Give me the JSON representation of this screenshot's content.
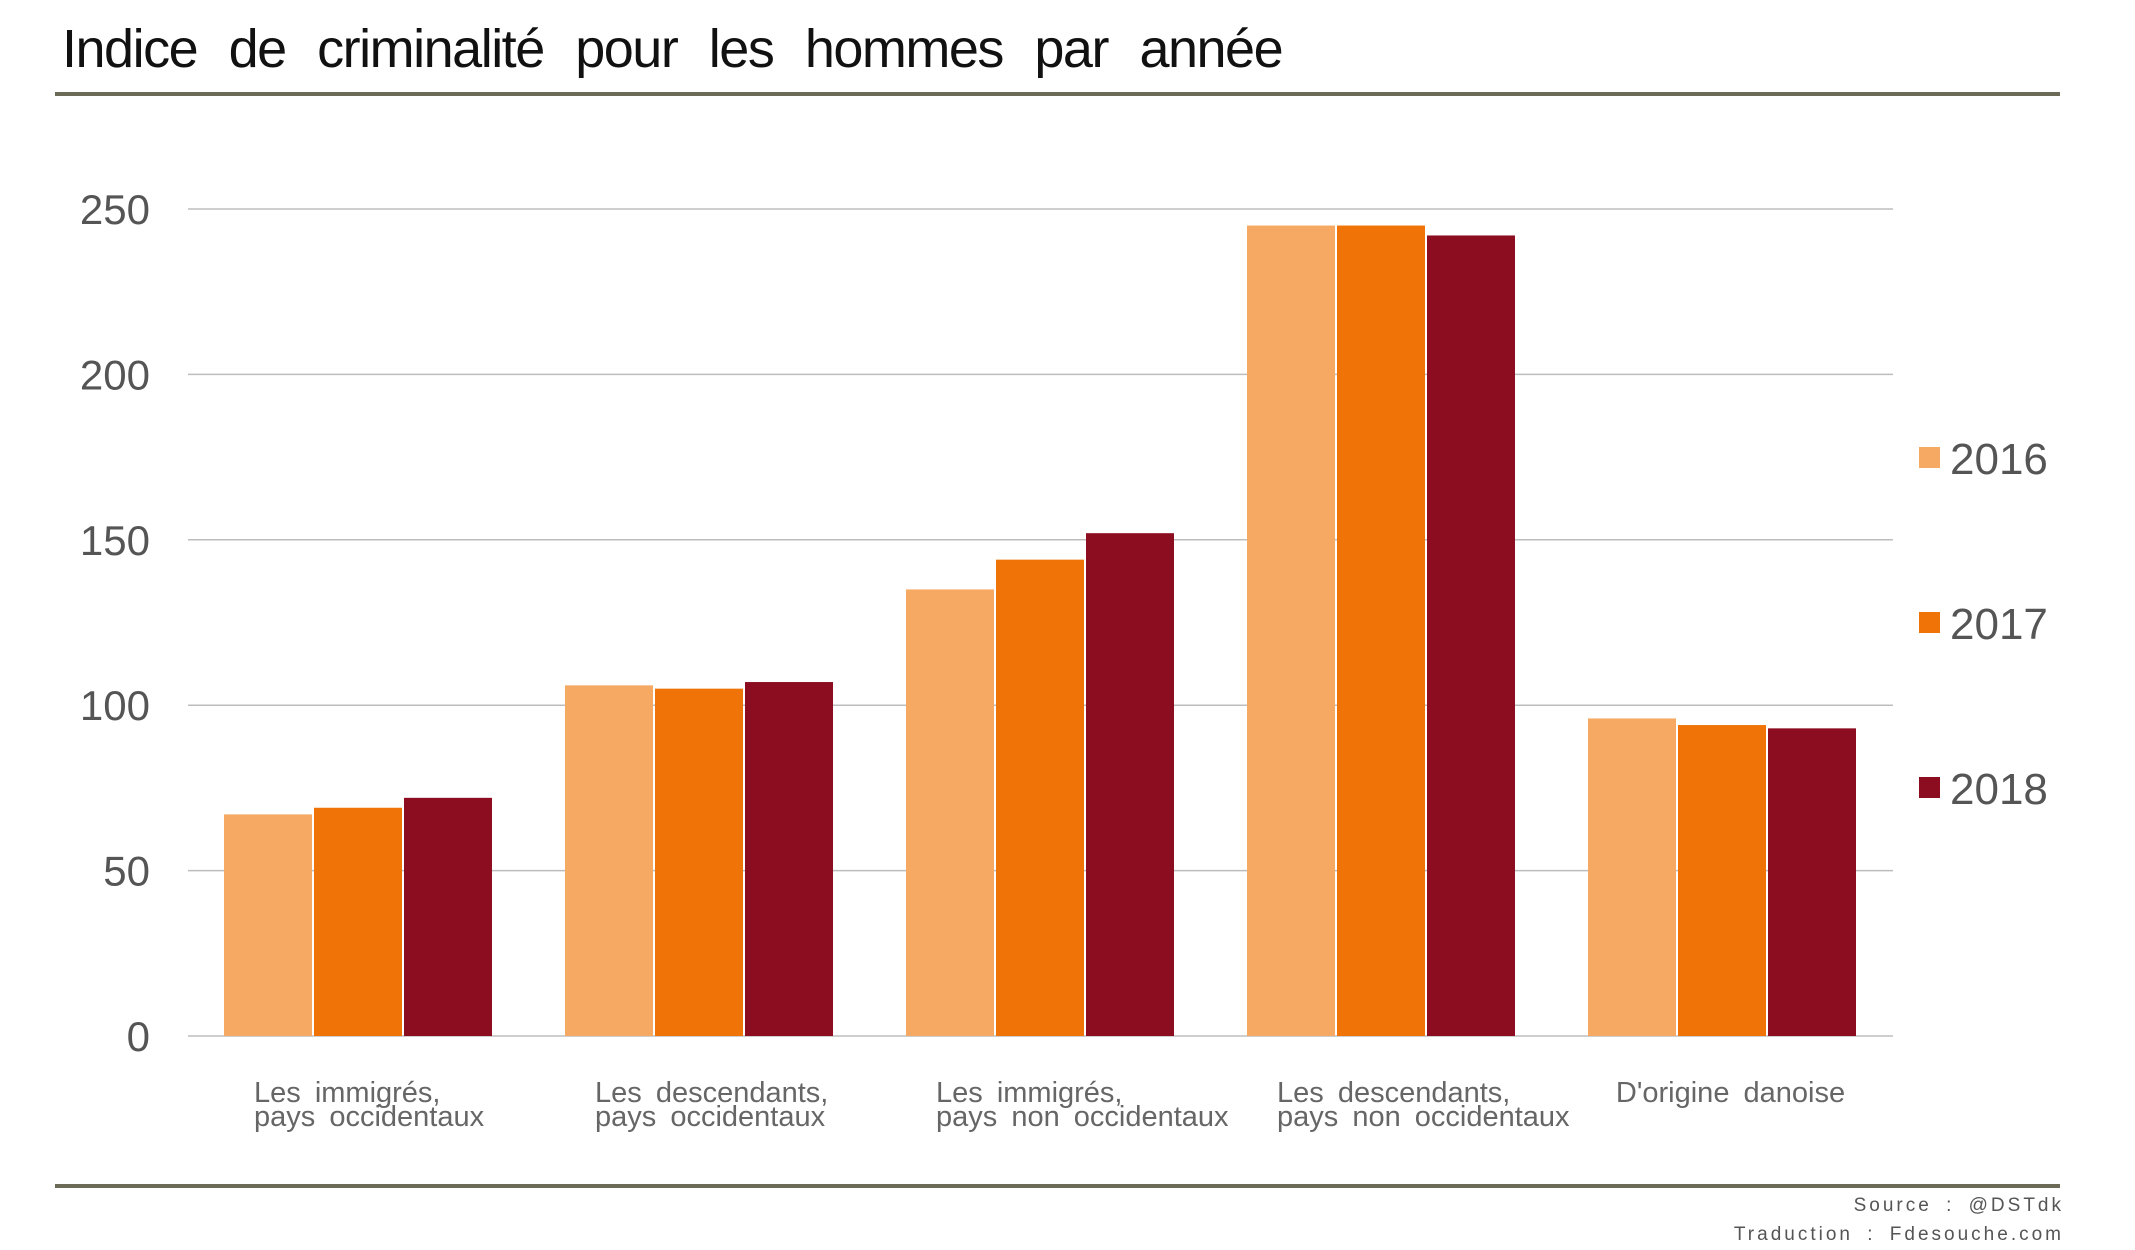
{
  "header": {
    "title": "Indice de criminalité pour les hommes par année"
  },
  "footer": {
    "source": "Source : @DSTdk",
    "translation": "Traduction : Fdesouche.com"
  },
  "colors": {
    "s2016": "#f5a962",
    "s2017": "#ef7306",
    "s2018": "#8c0c20",
    "grid": "#bdbdbd",
    "rule": "#6b6b58"
  },
  "chart_data": {
    "type": "bar",
    "title": "Indice de criminalité pour les hommes par année",
    "xlabel": "",
    "ylabel": "",
    "ylim": [
      0,
      250
    ],
    "yticks": [
      0,
      50,
      100,
      150,
      200,
      250
    ],
    "grid": true,
    "legend_position": "right",
    "categories": [
      [
        "Les immigrés,",
        "pays occidentaux"
      ],
      [
        "Les descendants,",
        "pays occidentaux"
      ],
      [
        "Les immigrés,",
        "pays non occidentaux"
      ],
      [
        "Les descendants,",
        "pays non occidentaux"
      ],
      [
        "D'origine danoise"
      ]
    ],
    "series": [
      {
        "name": "2016",
        "color": "#f5a962",
        "values": [
          67,
          106,
          135,
          245,
          96
        ]
      },
      {
        "name": "2017",
        "color": "#ef7306",
        "values": [
          69,
          105,
          144,
          245,
          94
        ]
      },
      {
        "name": "2018",
        "color": "#8c0c20",
        "values": [
          72,
          107,
          152,
          242,
          93
        ]
      }
    ]
  }
}
